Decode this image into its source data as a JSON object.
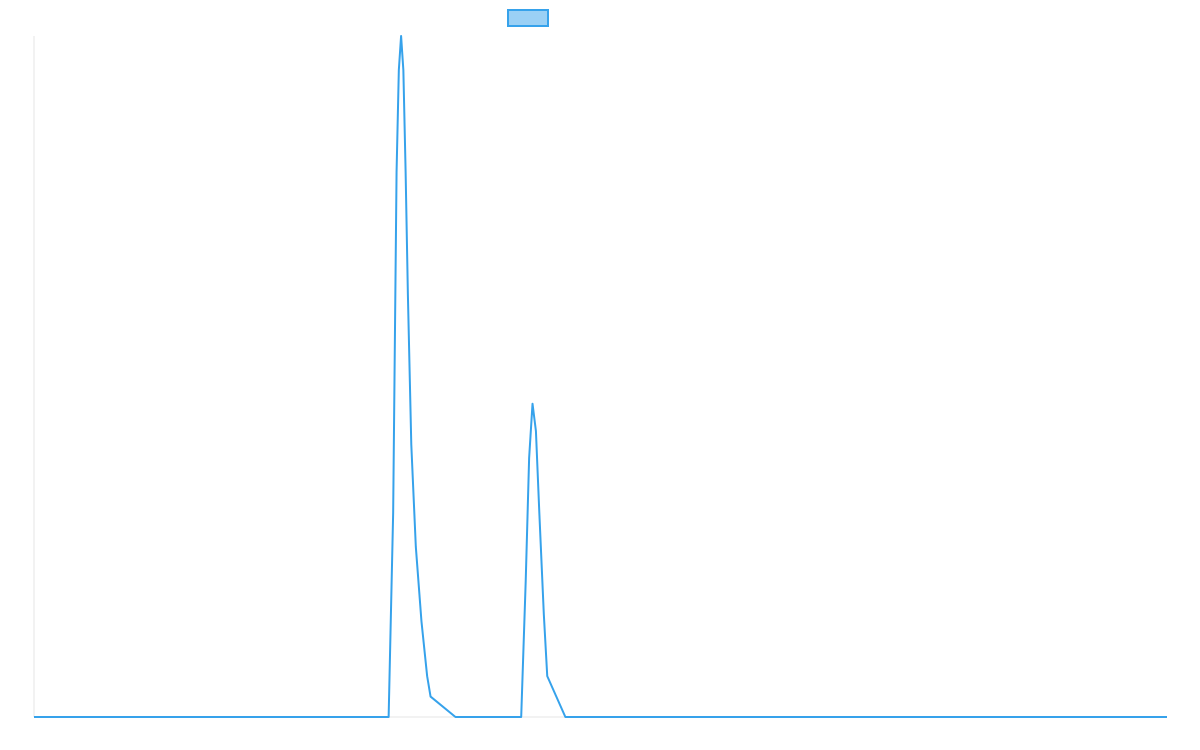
{
  "chart_data": {
    "type": "line",
    "title": "",
    "xlabel": "",
    "ylabel": "",
    "grid": false,
    "legend": {
      "position": "top-center",
      "entries": [
        {
          "name": "",
          "color": "#36a2eb",
          "fill": "#9ad0f5"
        }
      ]
    },
    "xlim": [
      0,
      1000
    ],
    "ylim": [
      0,
      100
    ],
    "series": [
      {
        "name": "",
        "color": "#36a2eb",
        "points": [
          [
            0,
            0
          ],
          [
            313,
            0
          ],
          [
            317,
            30
          ],
          [
            320,
            80
          ],
          [
            322,
            95
          ],
          [
            324,
            100
          ],
          [
            326,
            95
          ],
          [
            328,
            80
          ],
          [
            330,
            62
          ],
          [
            333,
            40
          ],
          [
            337,
            25
          ],
          [
            342,
            14
          ],
          [
            347,
            6
          ],
          [
            350,
            3
          ],
          [
            372,
            0
          ],
          [
            430,
            0
          ],
          [
            434,
            20
          ],
          [
            437,
            38
          ],
          [
            440,
            46
          ],
          [
            443,
            42
          ],
          [
            446,
            30
          ],
          [
            450,
            15
          ],
          [
            453,
            6
          ],
          [
            469,
            0
          ],
          [
            1000,
            0
          ]
        ]
      }
    ]
  }
}
